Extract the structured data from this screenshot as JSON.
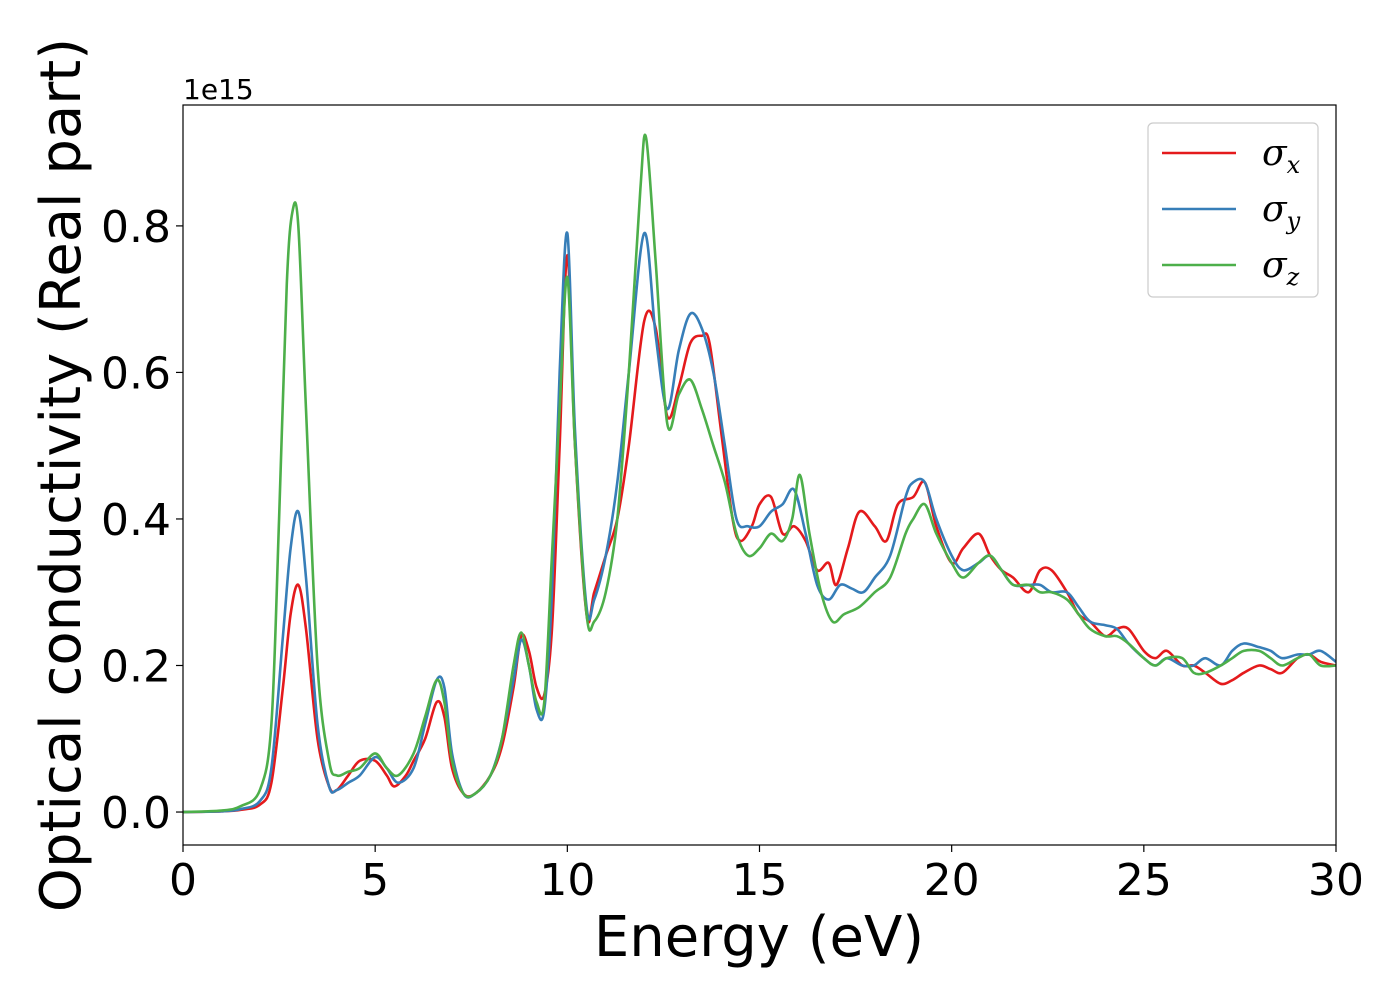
{
  "chart_data": {
    "type": "line",
    "title": "",
    "xlabel": "Energy (eV)",
    "ylabel": "Optical conductivity (Real part)",
    "y_offset_text": "1e15",
    "xlim": [
      0,
      30
    ],
    "ylim": [
      -0.045,
      0.965
    ],
    "xticks": [
      0,
      5,
      10,
      15,
      20,
      25,
      30
    ],
    "xtick_labels": [
      "0",
      "5",
      "10",
      "15",
      "20",
      "25",
      "30"
    ],
    "yticks": [
      0.0,
      0.2,
      0.4,
      0.6,
      0.8
    ],
    "ytick_labels": [
      "0.0",
      "0.2",
      "0.4",
      "0.6",
      "0.8"
    ],
    "grid": false,
    "legend_position": "top-right",
    "series": [
      {
        "name": "σx",
        "name_base": "σ",
        "name_sub": "x",
        "color": "#e41a1c",
        "x": [
          0,
          1,
          1.5,
          2,
          2.3,
          2.6,
          2.8,
          3.0,
          3.2,
          3.5,
          3.8,
          4.0,
          4.3,
          4.6,
          5.0,
          5.3,
          5.5,
          5.8,
          6.0,
          6.3,
          6.6,
          6.8,
          7.0,
          7.3,
          7.6,
          8.0,
          8.3,
          8.6,
          8.8,
          9.0,
          9.2,
          9.4,
          9.6,
          9.8,
          10.0,
          10.2,
          10.5,
          10.7,
          11.0,
          11.3,
          11.6,
          12.0,
          12.3,
          12.6,
          12.9,
          13.2,
          13.5,
          13.7,
          14.0,
          14.3,
          14.5,
          14.8,
          15.0,
          15.3,
          15.6,
          15.9,
          16.2,
          16.5,
          16.8,
          17.0,
          17.3,
          17.6,
          18.0,
          18.3,
          18.6,
          19.0,
          19.3,
          19.6,
          20.0,
          20.3,
          20.7,
          21.0,
          21.3,
          21.6,
          22.0,
          22.3,
          22.6,
          23.0,
          23.3,
          23.6,
          24.0,
          24.3,
          24.6,
          25.0,
          25.3,
          25.6,
          26.0,
          26.3,
          26.6,
          27.0,
          27.3,
          27.6,
          28.0,
          28.3,
          28.6,
          29.0,
          29.3,
          29.6,
          30.0
        ],
        "values": [
          0.0,
          0.001,
          0.003,
          0.01,
          0.04,
          0.17,
          0.27,
          0.31,
          0.25,
          0.1,
          0.035,
          0.03,
          0.05,
          0.07,
          0.07,
          0.05,
          0.035,
          0.05,
          0.07,
          0.1,
          0.15,
          0.13,
          0.06,
          0.025,
          0.025,
          0.05,
          0.09,
          0.17,
          0.24,
          0.22,
          0.17,
          0.16,
          0.25,
          0.5,
          0.76,
          0.5,
          0.27,
          0.3,
          0.35,
          0.4,
          0.5,
          0.67,
          0.66,
          0.54,
          0.58,
          0.64,
          0.65,
          0.64,
          0.52,
          0.4,
          0.37,
          0.39,
          0.42,
          0.43,
          0.38,
          0.39,
          0.37,
          0.33,
          0.34,
          0.31,
          0.36,
          0.41,
          0.39,
          0.37,
          0.42,
          0.43,
          0.45,
          0.39,
          0.34,
          0.36,
          0.38,
          0.35,
          0.33,
          0.32,
          0.3,
          0.33,
          0.33,
          0.3,
          0.27,
          0.26,
          0.24,
          0.25,
          0.25,
          0.22,
          0.21,
          0.22,
          0.2,
          0.2,
          0.19,
          0.175,
          0.18,
          0.19,
          0.2,
          0.195,
          0.19,
          0.21,
          0.215,
          0.205,
          0.2
        ]
      },
      {
        "name": "σy",
        "name_base": "σ",
        "name_sub": "y",
        "color": "#377eb8",
        "x": [
          0,
          1,
          1.5,
          2,
          2.3,
          2.6,
          2.8,
          3.0,
          3.2,
          3.5,
          3.8,
          4.0,
          4.3,
          4.6,
          5.0,
          5.3,
          5.6,
          6.0,
          6.3,
          6.6,
          6.8,
          7.0,
          7.3,
          7.6,
          8.0,
          8.3,
          8.6,
          8.8,
          9.0,
          9.2,
          9.4,
          9.6,
          9.8,
          10.0,
          10.2,
          10.5,
          10.7,
          11.0,
          11.3,
          11.6,
          12.0,
          12.3,
          12.6,
          12.9,
          13.2,
          13.5,
          13.8,
          14.1,
          14.4,
          14.7,
          15.0,
          15.3,
          15.6,
          15.9,
          16.2,
          16.5,
          16.8,
          17.1,
          17.4,
          17.7,
          18.0,
          18.4,
          18.8,
          19.0,
          19.3,
          19.6,
          20.0,
          20.3,
          20.7,
          21.0,
          21.3,
          21.6,
          22.0,
          22.3,
          22.6,
          23.0,
          23.3,
          23.6,
          24.0,
          24.3,
          24.6,
          25.0,
          25.3,
          25.6,
          26.0,
          26.3,
          26.6,
          27.0,
          27.3,
          27.6,
          28.0,
          28.3,
          28.6,
          29.0,
          29.3,
          29.6,
          30.0
        ],
        "values": [
          0.0,
          0.001,
          0.004,
          0.015,
          0.06,
          0.24,
          0.36,
          0.41,
          0.32,
          0.12,
          0.035,
          0.03,
          0.04,
          0.05,
          0.075,
          0.06,
          0.04,
          0.06,
          0.12,
          0.18,
          0.17,
          0.08,
          0.025,
          0.025,
          0.05,
          0.1,
          0.18,
          0.235,
          0.2,
          0.14,
          0.14,
          0.3,
          0.6,
          0.79,
          0.52,
          0.28,
          0.29,
          0.35,
          0.45,
          0.6,
          0.79,
          0.65,
          0.55,
          0.63,
          0.68,
          0.66,
          0.6,
          0.5,
          0.4,
          0.39,
          0.39,
          0.41,
          0.42,
          0.44,
          0.38,
          0.31,
          0.29,
          0.31,
          0.305,
          0.3,
          0.32,
          0.35,
          0.43,
          0.45,
          0.45,
          0.4,
          0.35,
          0.33,
          0.34,
          0.35,
          0.33,
          0.31,
          0.31,
          0.31,
          0.3,
          0.3,
          0.28,
          0.26,
          0.255,
          0.25,
          0.23,
          0.21,
          0.2,
          0.21,
          0.2,
          0.2,
          0.21,
          0.2,
          0.22,
          0.23,
          0.225,
          0.22,
          0.21,
          0.215,
          0.215,
          0.22,
          0.205
        ]
      },
      {
        "name": "σz",
        "name_base": "σ",
        "name_sub": "z",
        "color": "#4daf4a",
        "x": [
          0,
          1,
          1.5,
          2,
          2.3,
          2.5,
          2.7,
          2.85,
          3.0,
          3.2,
          3.5,
          3.8,
          4.0,
          4.3,
          4.6,
          5.0,
          5.3,
          5.6,
          6.0,
          6.3,
          6.6,
          6.8,
          7.0,
          7.3,
          7.6,
          8.0,
          8.3,
          8.6,
          8.8,
          9.0,
          9.2,
          9.4,
          9.6,
          9.8,
          10.0,
          10.2,
          10.5,
          10.7,
          11.0,
          11.3,
          11.6,
          11.9,
          12.05,
          12.3,
          12.6,
          12.9,
          13.2,
          13.5,
          13.8,
          14.1,
          14.4,
          14.7,
          15.0,
          15.3,
          15.6,
          15.85,
          16.05,
          16.3,
          16.6,
          16.9,
          17.2,
          17.6,
          18.0,
          18.4,
          18.8,
          19.0,
          19.3,
          19.6,
          20.0,
          20.3,
          20.7,
          21.0,
          21.3,
          21.6,
          22.0,
          22.3,
          22.6,
          23.0,
          23.3,
          23.6,
          24.0,
          24.3,
          24.6,
          25.0,
          25.3,
          25.6,
          26.0,
          26.3,
          26.6,
          27.0,
          27.3,
          27.6,
          28.0,
          28.3,
          28.6,
          29.0,
          29.3,
          29.6,
          30.0
        ],
        "values": [
          0.0,
          0.002,
          0.008,
          0.03,
          0.12,
          0.4,
          0.72,
          0.82,
          0.8,
          0.55,
          0.2,
          0.07,
          0.05,
          0.055,
          0.06,
          0.08,
          0.06,
          0.05,
          0.08,
          0.13,
          0.18,
          0.15,
          0.07,
          0.025,
          0.025,
          0.05,
          0.1,
          0.2,
          0.245,
          0.2,
          0.15,
          0.15,
          0.35,
          0.55,
          0.73,
          0.5,
          0.27,
          0.26,
          0.3,
          0.4,
          0.6,
          0.85,
          0.92,
          0.75,
          0.53,
          0.57,
          0.59,
          0.55,
          0.5,
          0.45,
          0.38,
          0.35,
          0.36,
          0.38,
          0.37,
          0.4,
          0.46,
          0.38,
          0.3,
          0.26,
          0.27,
          0.28,
          0.3,
          0.32,
          0.38,
          0.4,
          0.42,
          0.38,
          0.34,
          0.32,
          0.34,
          0.35,
          0.33,
          0.31,
          0.31,
          0.3,
          0.3,
          0.29,
          0.27,
          0.25,
          0.24,
          0.24,
          0.23,
          0.21,
          0.2,
          0.21,
          0.21,
          0.19,
          0.19,
          0.2,
          0.21,
          0.22,
          0.22,
          0.21,
          0.2,
          0.21,
          0.215,
          0.2,
          0.2
        ]
      }
    ]
  }
}
